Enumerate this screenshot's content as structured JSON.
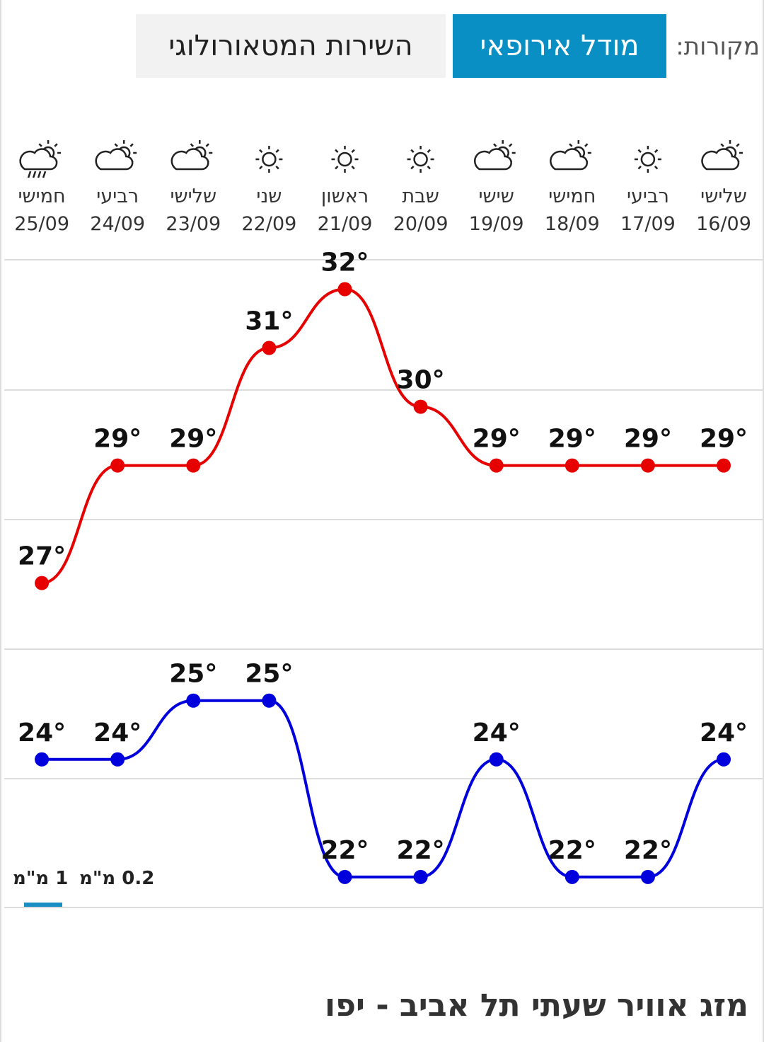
{
  "header": {
    "sources_label": "מקורות:",
    "tabs": [
      "מודל אירופאי",
      "השירות המטאורולוגי"
    ]
  },
  "chart_data": {
    "type": "line",
    "categories": [
      "16/09",
      "17/09",
      "18/09",
      "19/09",
      "20/09",
      "21/09",
      "22/09",
      "23/09",
      "24/09",
      "25/09"
    ],
    "days": [
      "שלישי",
      "רביעי",
      "חמישי",
      "שישי",
      "שבת",
      "ראשון",
      "שני",
      "שלישי",
      "רביעי",
      "חמישי"
    ],
    "series": [
      {
        "color": "#e60000",
        "values": [
          29,
          29,
          29,
          29,
          30,
          32,
          31,
          29,
          29,
          27
        ],
        "value_labels": [
          "29°",
          "29°",
          "29°",
          "29°",
          "30°",
          "32°",
          "31°",
          "29°",
          "29°",
          "27°"
        ]
      },
      {
        "color": "#0000dd",
        "values": [
          24,
          22,
          22,
          24,
          22,
          22,
          25,
          25,
          24,
          24
        ],
        "value_labels": [
          "24°",
          "22°",
          "22°",
          "24°",
          "22°",
          "22°",
          "25°",
          "25°",
          "24°",
          "24°"
        ]
      }
    ],
    "ylim": [
      21.48,
      32.5
    ]
  },
  "precipitation": {
    "labels": [
      "1 מ\"מ",
      "0.2 מ\"מ"
    ]
  },
  "footer": {
    "title": "מזג אוויר שעתי תל אביב - יפו"
  }
}
